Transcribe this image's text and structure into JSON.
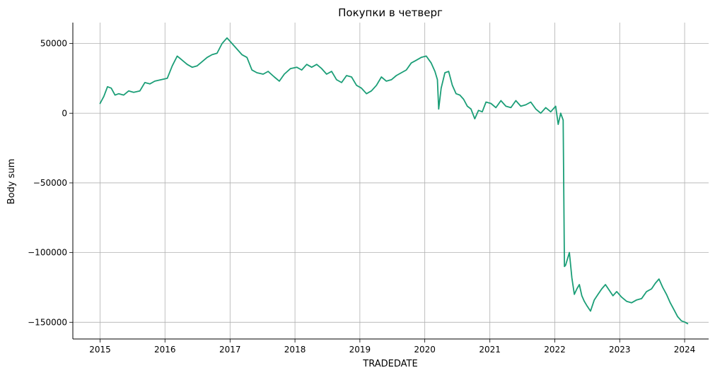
{
  "chart_data": {
    "type": "line",
    "title": "Покупки в четверг",
    "xlabel": "TRADEDATE",
    "ylabel": "Body sum",
    "xlim": [
      "2014-08-01",
      "2024-05-15"
    ],
    "ylim": [
      -162000,
      65000
    ],
    "x_ticks": [
      "2015",
      "2016",
      "2017",
      "2018",
      "2019",
      "2020",
      "2021",
      "2022",
      "2023",
      "2024"
    ],
    "y_ticks": [
      50000,
      0,
      -50000,
      -100000,
      -150000
    ],
    "y_tick_labels": [
      "50000",
      "0",
      "−50000",
      "−100000",
      "−150000"
    ],
    "grid": true,
    "legend": "none",
    "line_color": "#1b9e77",
    "series": [
      {
        "x": [
          "2015-01-01",
          "2015-01-22",
          "2015-02-12",
          "2015-03-05",
          "2015-03-26",
          "2015-04-16",
          "2015-05-14",
          "2015-06-11",
          "2015-07-09",
          "2015-08-13",
          "2015-09-10",
          "2015-10-08",
          "2015-11-05",
          "2015-12-10",
          "2016-01-14",
          "2016-02-11",
          "2016-03-10",
          "2016-04-07",
          "2016-05-05",
          "2016-06-02",
          "2016-06-30",
          "2016-07-28",
          "2016-08-25",
          "2016-09-22",
          "2016-10-20",
          "2016-11-17",
          "2016-12-15",
          "2017-01-12",
          "2017-02-09",
          "2017-03-09",
          "2017-04-06",
          "2017-05-04",
          "2017-06-01",
          "2017-07-06",
          "2017-08-03",
          "2017-09-07",
          "2017-10-05",
          "2017-11-02",
          "2017-12-07",
          "2018-01-11",
          "2018-02-08",
          "2018-03-08",
          "2018-04-05",
          "2018-05-03",
          "2018-05-31",
          "2018-06-28",
          "2018-07-26",
          "2018-08-23",
          "2018-09-20",
          "2018-10-18",
          "2018-11-15",
          "2018-12-13",
          "2019-01-10",
          "2019-02-07",
          "2019-03-07",
          "2019-04-04",
          "2019-05-02",
          "2019-05-30",
          "2019-06-27",
          "2019-07-25",
          "2019-08-22",
          "2019-09-19",
          "2019-10-17",
          "2019-11-14",
          "2019-12-12",
          "2020-01-09",
          "2020-02-06",
          "2020-02-27",
          "2020-03-12",
          "2020-03-19",
          "2020-04-02",
          "2020-04-23",
          "2020-05-14",
          "2020-06-04",
          "2020-06-25",
          "2020-07-16",
          "2020-08-06",
          "2020-08-27",
          "2020-09-17",
          "2020-10-08",
          "2020-10-29",
          "2020-11-19",
          "2020-12-10",
          "2021-01-07",
          "2021-02-04",
          "2021-03-04",
          "2021-04-01",
          "2021-04-29",
          "2021-05-27",
          "2021-06-24",
          "2021-07-22",
          "2021-08-19",
          "2021-09-16",
          "2021-10-14",
          "2021-11-11",
          "2021-12-09",
          "2022-01-06",
          "2022-01-20",
          "2022-02-03",
          "2022-02-17",
          "2022-02-24",
          "2022-03-03",
          "2022-03-24",
          "2022-04-07",
          "2022-04-21",
          "2022-05-05",
          "2022-05-19",
          "2022-06-02",
          "2022-06-16",
          "2022-06-30",
          "2022-07-21",
          "2022-08-11",
          "2022-09-01",
          "2022-09-22",
          "2022-10-13",
          "2022-11-03",
          "2022-11-24",
          "2022-12-15",
          "2023-01-12",
          "2023-02-09",
          "2023-03-09",
          "2023-04-06",
          "2023-05-04",
          "2023-06-01",
          "2023-06-29",
          "2023-07-20",
          "2023-08-10",
          "2023-08-31",
          "2023-09-21",
          "2023-10-12",
          "2023-11-02",
          "2023-11-23",
          "2023-12-14",
          "2024-01-04",
          "2024-01-18"
        ],
        "y": [
          7000,
          12000,
          19000,
          18000,
          13000,
          14000,
          13000,
          16000,
          15000,
          16000,
          22000,
          21000,
          23000,
          24000,
          25000,
          34000,
          41000,
          38000,
          35000,
          33000,
          34000,
          37000,
          40000,
          42000,
          43000,
          50000,
          54000,
          50000,
          46000,
          42000,
          40000,
          31000,
          29000,
          28000,
          30000,
          26000,
          23000,
          28000,
          32000,
          33000,
          31000,
          35000,
          33000,
          35000,
          32000,
          28000,
          30000,
          24000,
          22000,
          27000,
          26000,
          20000,
          18000,
          14000,
          16000,
          20000,
          26000,
          23000,
          24000,
          27000,
          29000,
          31000,
          36000,
          38000,
          40000,
          41000,
          36000,
          30000,
          24000,
          3000,
          18000,
          29000,
          30000,
          20000,
          14000,
          13000,
          10000,
          5000,
          3000,
          -4000,
          2000,
          1000,
          8000,
          7000,
          4000,
          9000,
          5000,
          4000,
          9000,
          5000,
          6000,
          8000,
          3000,
          0,
          4000,
          1000,
          5000,
          -8000,
          0,
          -5000,
          -110000,
          -109000,
          -100000,
          -118000,
          -130000,
          -126000,
          -123000,
          -131000,
          -135000,
          -138000,
          -142000,
          -134000,
          -130000,
          -126000,
          -123000,
          -127000,
          -131000,
          -128000,
          -132000,
          -135000,
          -136000,
          -134000,
          -133000,
          -128000,
          -126000,
          -122000,
          -119000,
          -125000,
          -130000,
          -136000,
          -141000,
          -146000,
          -149000,
          -150000,
          -151000
        ]
      }
    ]
  }
}
